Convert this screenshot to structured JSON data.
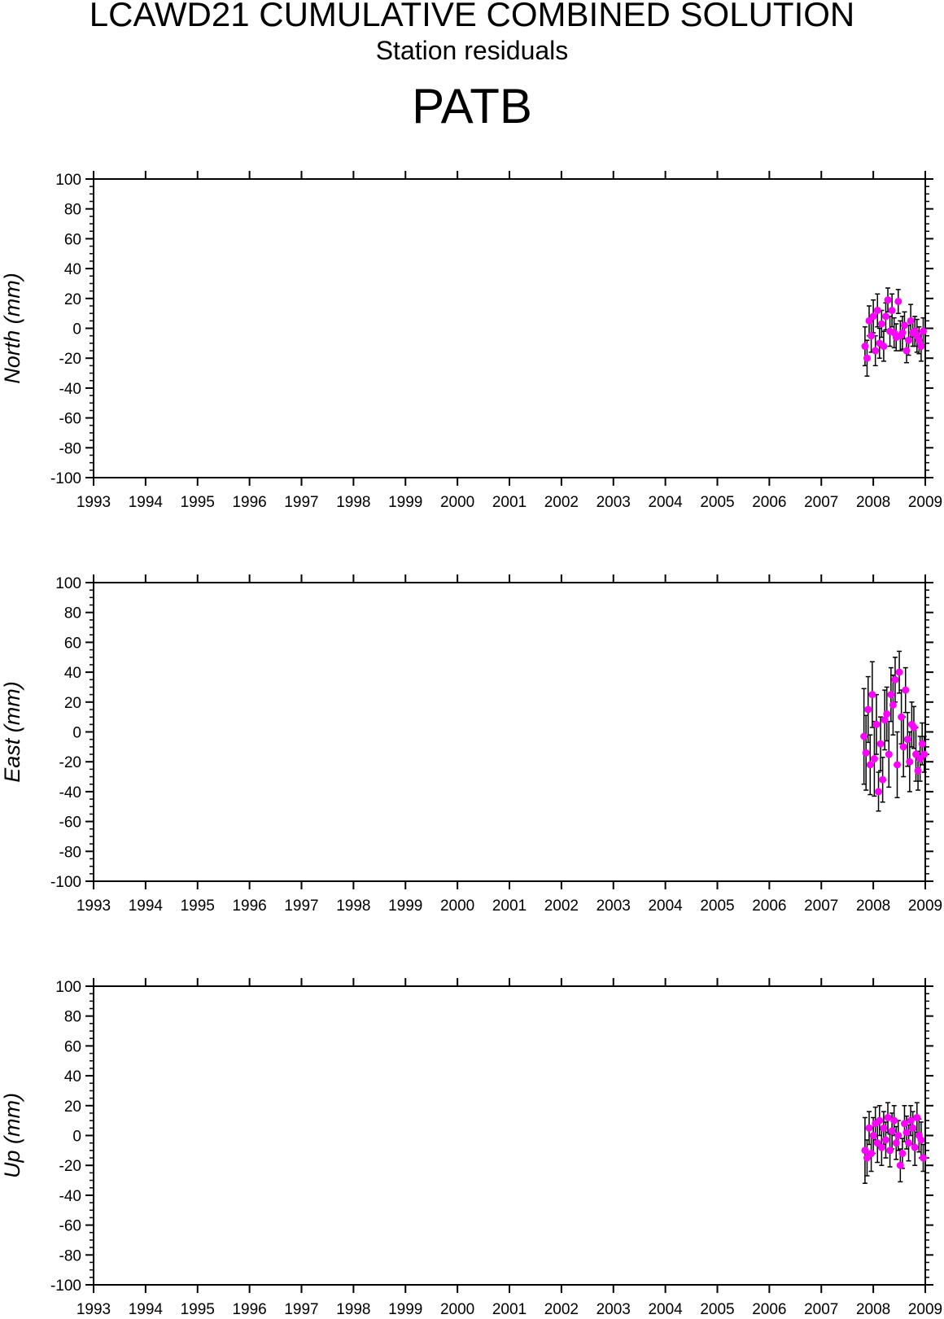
{
  "title": "LCAWD21 CUMULATIVE COMBINED SOLUTION",
  "subtitle": "Station residuals",
  "station": "PATB",
  "chart_data": [
    {
      "type": "scatter",
      "ylabel": "North (mm)",
      "ylim": [
        -100,
        100
      ],
      "yticks": [
        100,
        80,
        60,
        40,
        20,
        0,
        -20,
        -40,
        -60,
        -80,
        -100
      ],
      "xlim": [
        1993,
        2009
      ],
      "xticks": [
        "1993",
        "1994",
        "1995",
        "1996",
        "1997",
        "1998",
        "1999",
        "2000",
        "2001",
        "2002",
        "2003",
        "2004",
        "2005",
        "2006",
        "2007",
        "2008",
        "2009"
      ],
      "marker_color": "#ff00ff",
      "errorbar_color": "#000000",
      "x": [
        2007.84,
        2007.88,
        2007.92,
        2007.96,
        2008.0,
        2008.04,
        2008.08,
        2008.12,
        2008.16,
        2008.2,
        2008.24,
        2008.28,
        2008.32,
        2008.36,
        2008.4,
        2008.44,
        2008.48,
        2008.52,
        2008.56,
        2008.6,
        2008.64,
        2008.68,
        2008.72,
        2008.76,
        2008.8,
        2008.84,
        2008.88,
        2008.92,
        2008.96
      ],
      "y": [
        -12,
        -20,
        5,
        -5,
        8,
        -15,
        12,
        -10,
        3,
        -12,
        8,
        19,
        -2,
        12,
        -3,
        -6,
        18,
        -5,
        -3,
        2,
        -15,
        -8,
        5,
        -3,
        -2,
        -5,
        -8,
        -12,
        -2
      ],
      "err": [
        13,
        12,
        10,
        11,
        11,
        10,
        11,
        10,
        9,
        10,
        9,
        8,
        10,
        11,
        10,
        9,
        8,
        10,
        11,
        9,
        8,
        10,
        11,
        9,
        10,
        11,
        9,
        10,
        9
      ]
    },
    {
      "type": "scatter",
      "ylabel": "East (mm)",
      "ylim": [
        -100,
        100
      ],
      "yticks": [
        100,
        80,
        60,
        40,
        20,
        0,
        -20,
        -40,
        -60,
        -80,
        -100
      ],
      "xlim": [
        1993,
        2009
      ],
      "xticks": [
        "1993",
        "1994",
        "1995",
        "1996",
        "1997",
        "1998",
        "1999",
        "2000",
        "2001",
        "2002",
        "2003",
        "2004",
        "2005",
        "2006",
        "2007",
        "2008",
        "2009"
      ],
      "marker_color": "#ff00ff",
      "errorbar_color": "#000000",
      "x": [
        2007.82,
        2007.86,
        2007.9,
        2007.94,
        2007.98,
        2008.02,
        2008.06,
        2008.1,
        2008.14,
        2008.18,
        2008.22,
        2008.26,
        2008.3,
        2008.34,
        2008.38,
        2008.42,
        2008.46,
        2008.5,
        2008.54,
        2008.58,
        2008.62,
        2008.66,
        2008.7,
        2008.74,
        2008.78,
        2008.82,
        2008.86,
        2008.9,
        2008.94,
        2008.98
      ],
      "y": [
        -3,
        -14,
        15,
        -22,
        25,
        -18,
        5,
        -40,
        -8,
        -32,
        8,
        12,
        -15,
        25,
        18,
        35,
        -22,
        40,
        10,
        -10,
        28,
        -5,
        -20,
        5,
        3,
        -15,
        -26,
        -18,
        -8,
        -15
      ],
      "err": [
        32,
        25,
        22,
        20,
        22,
        25,
        20,
        13,
        18,
        15,
        20,
        18,
        22,
        18,
        20,
        15,
        22,
        14,
        18,
        20,
        15,
        18,
        20,
        15,
        14,
        18,
        13,
        15,
        14,
        12
      ]
    },
    {
      "type": "scatter",
      "ylabel": "Up (mm)",
      "ylim": [
        -100,
        100
      ],
      "yticks": [
        100,
        80,
        60,
        40,
        20,
        0,
        -20,
        -40,
        -60,
        -80,
        -100
      ],
      "xlim": [
        1993,
        2009
      ],
      "xticks": [
        "1993",
        "1994",
        "1995",
        "1996",
        "1997",
        "1998",
        "1999",
        "2000",
        "2001",
        "2002",
        "2003",
        "2004",
        "2005",
        "2006",
        "2007",
        "2008",
        "2009"
      ],
      "marker_color": "#ff00ff",
      "errorbar_color": "#000000",
      "x": [
        2007.84,
        2007.88,
        2007.92,
        2007.96,
        2008.0,
        2008.04,
        2008.08,
        2008.12,
        2008.16,
        2008.2,
        2008.24,
        2008.28,
        2008.32,
        2008.36,
        2008.4,
        2008.44,
        2008.48,
        2008.52,
        2008.56,
        2008.6,
        2008.64,
        2008.68,
        2008.72,
        2008.76,
        2008.8,
        2008.84,
        2008.88,
        2008.92,
        2008.96
      ],
      "y": [
        -10,
        -15,
        5,
        -12,
        0,
        8,
        -5,
        10,
        -8,
        5,
        -3,
        12,
        -10,
        3,
        10,
        -5,
        0,
        -20,
        -12,
        8,
        2,
        -5,
        10,
        5,
        -8,
        12,
        0,
        -3,
        -15
      ],
      "err": [
        22,
        12,
        11,
        12,
        12,
        11,
        13,
        10,
        12,
        11,
        12,
        10,
        11,
        12,
        10,
        11,
        10,
        11,
        10,
        12,
        11,
        12,
        10,
        11,
        12,
        10,
        11,
        12,
        9
      ]
    }
  ]
}
